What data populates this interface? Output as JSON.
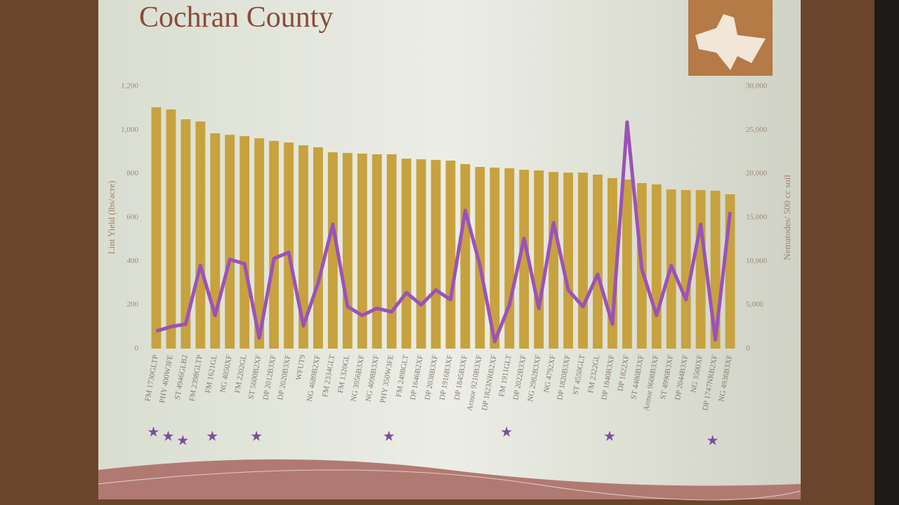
{
  "chart_data": {
    "type": "bar-line",
    "title": "Cochran County",
    "y_label": "Lint Yield (lbs/acre)",
    "y2_label": "Nematodes/ 500 cc soil",
    "categories": [
      "FM 1730GLTP",
      "PHY 400W3FE",
      "ST 4946GLB2",
      "FM 2398GLTP",
      "FM 1621GL",
      "NG 4050XF",
      "FM 2202GL",
      "ST 5600B2XF",
      "DP 2012B3XF",
      "DP 2020B3XF",
      "WFUT9",
      "NG 4689B2XF",
      "FM 2334GLT",
      "FM 1320GL",
      "NG 3956B3XF",
      "NG 4098B3XF",
      "PHY 350W3FE",
      "FM 2498GLT",
      "DP 1646B2XF",
      "DP 2038B3XF",
      "DP 1916B3XF",
      "DP 1845B3XF",
      "Armor 9210B3XF",
      "DP 1823NRB2XF",
      "FM 1911GLT",
      "DP 2022B3XF",
      "NG 2982B3XF",
      "NG 4792XF",
      "DP 1820B3XF",
      "ST 4550GLT",
      "FM 2322GL",
      "DP 1840B3XF",
      "DP 1822XF",
      "ST 4480B3XF",
      "Armor 9608B3XF",
      "ST 4990B3XF",
      "DP 2044B3XF",
      "NG 3500XF",
      "DP 1747NRB2XF",
      "NG 4936B3XF"
    ],
    "markers": [
      "★",
      "★",
      "★",
      null,
      "★",
      null,
      null,
      "★",
      null,
      null,
      null,
      null,
      null,
      null,
      null,
      null,
      "★",
      null,
      null,
      null,
      null,
      null,
      null,
      null,
      "★",
      null,
      null,
      null,
      null,
      null,
      null,
      "★",
      null,
      null,
      null,
      null,
      null,
      null,
      "★",
      null
    ],
    "series": [
      {
        "name": "Lint Yield",
        "type": "bar",
        "color": "#c7a23e",
        "values": [
          1104,
          1094,
          1049,
          1039,
          985,
          978,
          972,
          962,
          950,
          943,
          930,
          921,
          898,
          895,
          892,
          889,
          889,
          869,
          866,
          863,
          860,
          844,
          831,
          828,
          825,
          818,
          815,
          808,
          805,
          805,
          796,
          780,
          773,
          757,
          751,
          728,
          725,
          725,
          722,
          706
        ]
      },
      {
        "name": "Nematodes",
        "type": "line",
        "axis": "y2",
        "color": "#9b52b8",
        "values": [
          2000,
          2500,
          2800,
          9500,
          3800,
          10200,
          9700,
          1200,
          10300,
          11000,
          2600,
          7500,
          14200,
          4800,
          3800,
          4600,
          4200,
          6400,
          5000,
          6700,
          5600,
          15800,
          9500,
          800,
          5000,
          12600,
          4600,
          14400,
          6700,
          4800,
          8500,
          2800,
          25900,
          9100,
          3800,
          9500,
          5600,
          14200,
          1000,
          15600
        ]
      }
    ],
    "ylim": [
      0,
      1200
    ],
    "yticks": [
      0,
      200,
      400,
      600,
      800,
      {
        "value": 1000,
        "label": "1,000"
      },
      {
        "value": 1200,
        "label": "1,200"
      }
    ],
    "y2lim": [
      0,
      30000
    ],
    "y2ticks": [
      0,
      {
        "value": 5000,
        "label": "5,000"
      },
      {
        "value": 10000,
        "label": "10,000"
      },
      {
        "value": 15000,
        "label": "15,000"
      },
      {
        "value": 20000,
        "label": "20,000"
      },
      {
        "value": 25000,
        "label": "25,000"
      },
      {
        "value": 30000,
        "label": "30,000"
      }
    ]
  }
}
